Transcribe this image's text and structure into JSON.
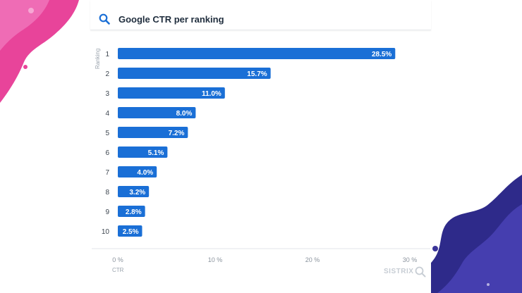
{
  "header": {
    "title": "Google CTR per ranking"
  },
  "brand": {
    "name": "SISTRIX"
  },
  "chart_data": {
    "type": "bar",
    "orientation": "horizontal",
    "title": "Google CTR per ranking",
    "ylabel": "Ranking",
    "xlabel": "CTR",
    "categories": [
      "1",
      "2",
      "3",
      "4",
      "5",
      "6",
      "7",
      "8",
      "9",
      "10"
    ],
    "values": [
      28.5,
      15.7,
      11.0,
      8.0,
      7.2,
      5.1,
      4.0,
      3.2,
      2.8,
      2.5
    ],
    "value_labels": [
      "28.5%",
      "15.7%",
      "11.0%",
      "8.0%",
      "7.2%",
      "5.1%",
      "4.0%",
      "3.2%",
      "2.8%",
      "2.5%"
    ],
    "xlim": [
      0,
      30
    ],
    "xticks": [
      0,
      10,
      20,
      30
    ],
    "xtick_labels": [
      "0 %",
      "10 %",
      "20 %",
      "30 %"
    ],
    "grid": false,
    "legend": "none",
    "bar_color": "#1a6fd6"
  }
}
